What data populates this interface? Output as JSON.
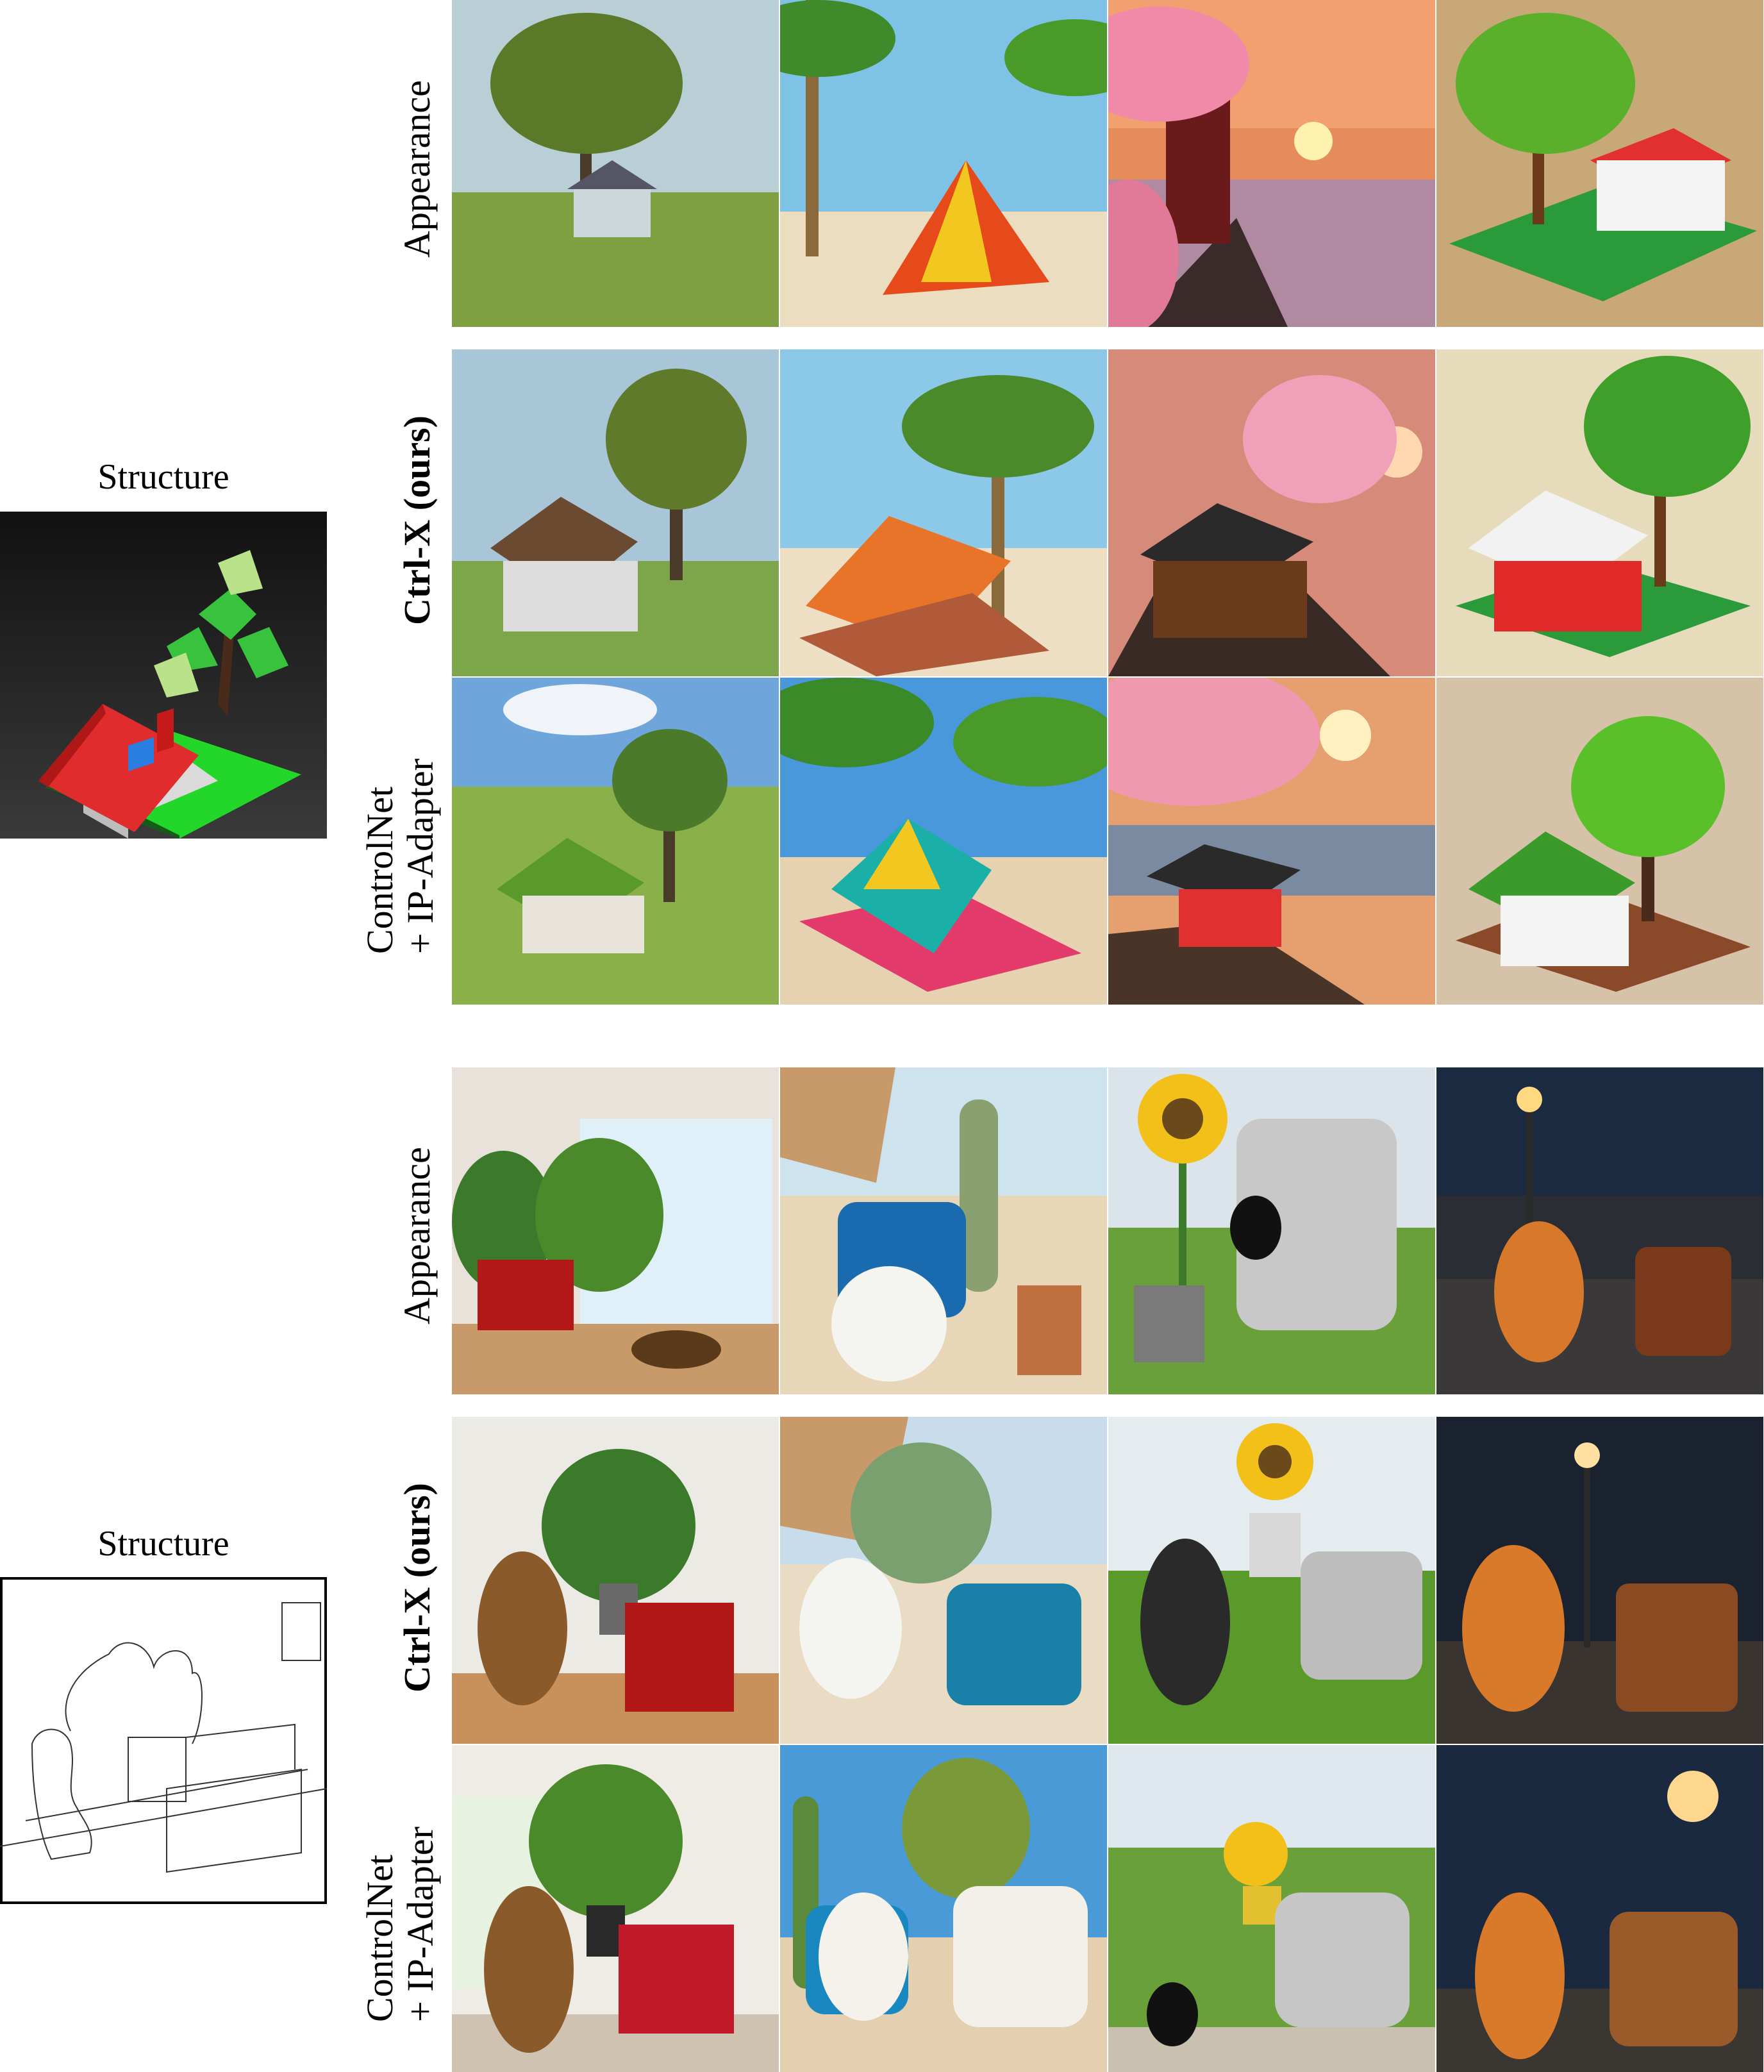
{
  "group1": {
    "structure_label": "Structure",
    "rows": [
      {
        "label": "Appearance",
        "bold": false
      },
      {
        "label": "Ctrl-X (ours)",
        "bold": true
      },
      {
        "label_line1": "ControlNet",
        "label_line2": "+ IP-Adapter",
        "bold": false
      }
    ],
    "columns": [
      "tree and house in a meadow",
      "tent on a palm beach",
      "pagoda with cherry blossoms at sunset",
      "brick-toy house with tree"
    ]
  },
  "group2": {
    "structure_label": "Structure",
    "rows": [
      {
        "label": "Appearance",
        "bold": false
      },
      {
        "label": "Ctrl-X (ours)",
        "bold": true
      },
      {
        "label_line1": "ControlNet",
        "label_line2": "+ IP-Adapter",
        "bold": false
      }
    ],
    "columns": [
      "living room with dog and red armchair",
      "beach with cactus, white dog and blue chair",
      "meadow with sunflower, black cat and grey chair",
      "night street with tiger and leather chair"
    ]
  }
}
